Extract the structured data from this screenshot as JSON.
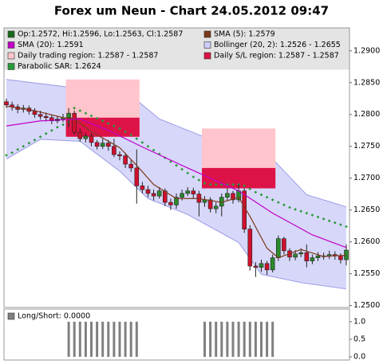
{
  "chart_data": [
    {
      "type": "candlestick",
      "title": "Forex um Neun - Chart 24.05.2012 09:47",
      "ohlc_label": "Op:1.2572, Hi:1.2596, Lo:1.2563, Cl:1.2587",
      "up_color": "#2a8a2a",
      "down_color": "#d0102e",
      "legend_color": "#1a6a1a",
      "open": [
        1.282,
        1.2815,
        1.2812,
        1.2808,
        1.281,
        1.2805,
        1.28,
        1.2797,
        1.2795,
        1.279,
        1.2793,
        1.2795,
        1.2802,
        1.2772,
        1.2762,
        1.2766,
        1.2756,
        1.275,
        1.2755,
        1.275,
        1.2737,
        1.2735,
        1.2722,
        1.2716,
        1.2688,
        1.2682,
        1.2676,
        1.2672,
        1.268,
        1.2662,
        1.2658,
        1.267,
        1.2676,
        1.268,
        1.2675,
        1.2662,
        1.2666,
        1.2652,
        1.2656,
        1.267,
        1.2676,
        1.2666,
        1.268,
        1.262,
        1.2562,
        1.256,
        1.2566,
        1.2556,
        1.2575,
        1.2605,
        1.2586,
        1.2576,
        1.2581,
        1.2583,
        1.257,
        1.2575,
        1.2578,
        1.2578,
        1.258,
        1.2578,
        1.2572
      ],
      "high": [
        1.2825,
        1.282,
        1.2816,
        1.2815,
        1.2814,
        1.281,
        1.2806,
        1.2803,
        1.28,
        1.2798,
        1.2801,
        1.281,
        1.2806,
        1.2778,
        1.2771,
        1.277,
        1.276,
        1.2762,
        1.276,
        1.2762,
        1.2742,
        1.274,
        1.2728,
        1.2745,
        1.2694,
        1.2688,
        1.2682,
        1.2686,
        1.2684,
        1.2668,
        1.2676,
        1.2682,
        1.2686,
        1.2685,
        1.268,
        1.2672,
        1.267,
        1.2662,
        1.2676,
        1.2684,
        1.268,
        1.269,
        1.2684,
        1.2626,
        1.2568,
        1.2572,
        1.257,
        1.258,
        1.261,
        1.2608,
        1.259,
        1.2587,
        1.259,
        1.2596,
        1.258,
        1.2584,
        1.2583,
        1.2586,
        1.2585,
        1.2582,
        1.2596
      ],
      "low": [
        1.281,
        1.2806,
        1.2802,
        1.2803,
        1.28,
        1.2795,
        1.2792,
        1.2789,
        1.2785,
        1.2786,
        1.2788,
        1.278,
        1.2768,
        1.2757,
        1.2756,
        1.275,
        1.2745,
        1.2746,
        1.2743,
        1.2733,
        1.2728,
        1.2716,
        1.271,
        1.266,
        1.2676,
        1.267,
        1.2665,
        1.2668,
        1.2656,
        1.265,
        1.2652,
        1.2665,
        1.2672,
        1.2668,
        1.264,
        1.2655,
        1.2646,
        1.2645,
        1.264,
        1.2664,
        1.266,
        1.2662,
        1.2614,
        1.2555,
        1.2545,
        1.2553,
        1.2548,
        1.2552,
        1.257,
        1.258,
        1.257,
        1.2571,
        1.2576,
        1.256,
        1.2565,
        1.257,
        1.2572,
        1.2573,
        1.2572,
        1.2566,
        1.2563
      ],
      "close": [
        1.2815,
        1.2812,
        1.2808,
        1.281,
        1.2805,
        1.28,
        1.2797,
        1.2795,
        1.279,
        1.2793,
        1.2795,
        1.2802,
        1.2772,
        1.2762,
        1.2766,
        1.2756,
        1.275,
        1.2755,
        1.275,
        1.2737,
        1.2735,
        1.2722,
        1.2716,
        1.2688,
        1.2682,
        1.2676,
        1.2672,
        1.268,
        1.2662,
        1.2658,
        1.267,
        1.2676,
        1.268,
        1.2675,
        1.2662,
        1.2666,
        1.2652,
        1.2656,
        1.267,
        1.2676,
        1.2666,
        1.268,
        1.262,
        1.2562,
        1.256,
        1.2566,
        1.2556,
        1.2575,
        1.2605,
        1.2586,
        1.2576,
        1.2581,
        1.2583,
        1.257,
        1.2575,
        1.2578,
        1.2578,
        1.258,
        1.2578,
        1.2572,
        1.2587
      ],
      "bollinger": {
        "name": "Bollinger (20, 2): 1.2526 - 1.2655",
        "color": "#9a9ae8",
        "fill": "#cdcdf8",
        "upper": {
          "x": [
            0,
            11,
            22,
            27,
            34,
            41,
            47,
            53,
            60
          ],
          "values": [
            1.2855,
            1.2843,
            1.283,
            1.2793,
            1.2768,
            1.2743,
            1.273,
            1.2674,
            1.2655
          ]
        },
        "lower": {
          "x": [
            0,
            6,
            13,
            20,
            25,
            32,
            41,
            45,
            52,
            60
          ],
          "values": [
            1.273,
            1.2761,
            1.2758,
            1.2711,
            1.2668,
            1.2643,
            1.2599,
            1.2549,
            1.2536,
            1.2526
          ]
        }
      },
      "regions": [
        {
          "name": "Daily trading region: 1.2587 - 1.2587",
          "color": "#ffc4cc",
          "bands": [
            {
              "start": 11,
              "end": 23,
              "range": [
                1.2765,
                1.2855
              ]
            },
            {
              "start": 35,
              "end": 47,
              "range": [
                1.2684,
                1.2778
              ]
            }
          ]
        },
        {
          "name": "Daily S/L region: 1.2587 - 1.2587",
          "color": "#dd1348",
          "bands": [
            {
              "start": 11,
              "end": 23,
              "range": [
                1.2765,
                1.2795
              ]
            },
            {
              "start": 35,
              "end": 47,
              "range": [
                1.2684,
                1.2716
              ]
            }
          ]
        }
      ],
      "series": [
        {
          "name": "SMA (5): 1.2579",
          "color": "#7a3a1a",
          "x": [
            0,
            5,
            10,
            12,
            15,
            20,
            23,
            26,
            30,
            34,
            38,
            41,
            43,
            46,
            48,
            52,
            56,
            60
          ],
          "values": [
            1.2813,
            1.2806,
            1.2795,
            1.2793,
            1.2773,
            1.2748,
            1.272,
            1.269,
            1.2668,
            1.2668,
            1.2662,
            1.267,
            1.264,
            1.259,
            1.2575,
            1.2588,
            1.2577,
            1.2579
          ]
        },
        {
          "name": "SMA (20): 1.2591",
          "color": "#c000c8",
          "x": [
            0,
            6,
            13,
            18,
            24,
            31,
            36,
            41,
            47,
            54,
            60
          ],
          "values": [
            1.2782,
            1.279,
            1.2793,
            1.2775,
            1.2749,
            1.272,
            1.27,
            1.268,
            1.2645,
            1.2611,
            1.2591
          ]
        }
      ],
      "sar": {
        "name": "Parabolic SAR: 1.2624",
        "color": "#2a9a3a",
        "values": [
          1.2736,
          1.274,
          1.2745,
          1.275,
          1.2755,
          1.276,
          1.2765,
          1.277,
          1.2775,
          1.278,
          1.2784,
          1.2788,
          1.281,
          1.2806,
          1.2802,
          1.2798,
          1.2794,
          1.279,
          1.2786,
          1.2782,
          1.2778,
          1.2773,
          1.2768,
          1.2762,
          1.2756,
          1.275,
          1.2744,
          1.2738,
          1.2732,
          1.2726,
          1.272,
          1.2714,
          1.2708,
          1.2702,
          1.2697,
          1.2692,
          1.269,
          1.269,
          1.269,
          1.269,
          1.269,
          1.269,
          1.2688,
          1.2683,
          1.2678,
          1.2674,
          1.267,
          1.2666,
          1.2662,
          1.2658,
          1.2654,
          1.2651,
          1.2648,
          1.2645,
          1.2642,
          1.2639,
          1.2636,
          1.2633,
          1.263,
          1.2627,
          1.2624
        ]
      },
      "ylim": [
        1.2497,
        1.2936
      ],
      "yticks": [
        {
          "value": 1.25,
          "label": "1.2500"
        },
        {
          "value": 1.255,
          "label": "1.2550"
        },
        {
          "value": 1.26,
          "label": "1.2600"
        },
        {
          "value": 1.265,
          "label": "1.2650"
        },
        {
          "value": 1.27,
          "label": "1.2700"
        },
        {
          "value": 1.275,
          "label": "1.2750"
        },
        {
          "value": 1.28,
          "label": "1.2800"
        },
        {
          "value": 1.285,
          "label": "1.2850"
        },
        {
          "value": 1.29,
          "label": "1.2900"
        }
      ]
    },
    {
      "type": "bar",
      "title": "Long/Short: 0.0000",
      "color": "#808080",
      "values": [
        0,
        0,
        0,
        0,
        0,
        0,
        0,
        0,
        0,
        0,
        0,
        1,
        1,
        1,
        1,
        1,
        1,
        1,
        1,
        1,
        1,
        1,
        1,
        1,
        0,
        0,
        0,
        0,
        0,
        0,
        0,
        0,
        0,
        0,
        0,
        1,
        1,
        1,
        1,
        1,
        1,
        1,
        1,
        1,
        1,
        1,
        1,
        1,
        0,
        0,
        0,
        0,
        0,
        0,
        0,
        0,
        0,
        0,
        0,
        0,
        0
      ],
      "ylim": [
        -0.09,
        1.36
      ],
      "yticks": [
        {
          "value": 0,
          "label": "0.0"
        },
        {
          "value": 0.5,
          "label": "0.5"
        },
        {
          "value": 1,
          "label": "1.0"
        }
      ]
    }
  ]
}
